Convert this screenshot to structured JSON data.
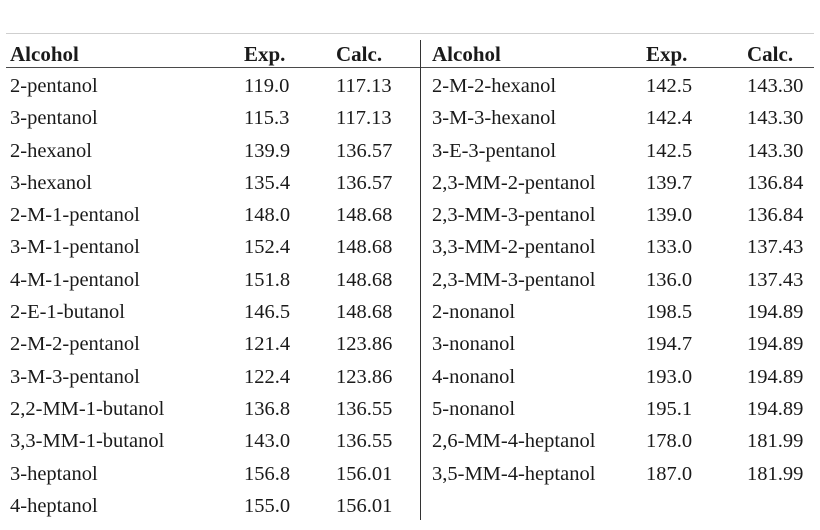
{
  "table": {
    "headers": {
      "alcohol": "Alcohol",
      "exp": "Exp.",
      "calc": "Calc."
    },
    "left_rows": [
      {
        "alcohol": "2-pentanol",
        "exp": "119.0",
        "calc": "117.13"
      },
      {
        "alcohol": "3-pentanol",
        "exp": "115.3",
        "calc": "117.13"
      },
      {
        "alcohol": "2-hexanol",
        "exp": "139.9",
        "calc": "136.57"
      },
      {
        "alcohol": "3-hexanol",
        "exp": "135.4",
        "calc": "136.57"
      },
      {
        "alcohol": "2-M-1-pentanol",
        "exp": "148.0",
        "calc": "148.68"
      },
      {
        "alcohol": "3-M-1-pentanol",
        "exp": "152.4",
        "calc": "148.68"
      },
      {
        "alcohol": "4-M-1-pentanol",
        "exp": "151.8",
        "calc": "148.68"
      },
      {
        "alcohol": "2-E-1-butanol",
        "exp": "146.5",
        "calc": "148.68"
      },
      {
        "alcohol": "2-M-2-pentanol",
        "exp": "121.4",
        "calc": "123.86"
      },
      {
        "alcohol": "3-M-3-pentanol",
        "exp": "122.4",
        "calc": "123.86"
      },
      {
        "alcohol": "2,2-MM-1-butanol",
        "exp": "136.8",
        "calc": "136.55"
      },
      {
        "alcohol": "3,3-MM-1-butanol",
        "exp": "143.0",
        "calc": "136.55"
      },
      {
        "alcohol": "3-heptanol",
        "exp": "156.8",
        "calc": "156.01"
      },
      {
        "alcohol": "4-heptanol",
        "exp": "155.0",
        "calc": "156.01"
      }
    ],
    "right_rows": [
      {
        "alcohol": "2-M-2-hexanol",
        "exp": "142.5",
        "calc": "143.30"
      },
      {
        "alcohol": "3-M-3-hexanol",
        "exp": "142.4",
        "calc": "143.30"
      },
      {
        "alcohol": "3-E-3-pentanol",
        "exp": "142.5",
        "calc": "143.30"
      },
      {
        "alcohol": "2,3-MM-2-pentanol",
        "exp": "139.7",
        "calc": "136.84"
      },
      {
        "alcohol": "2,3-MM-3-pentanol",
        "exp": "139.0",
        "calc": "136.84"
      },
      {
        "alcohol": "3,3-MM-2-pentanol",
        "exp": "133.0",
        "calc": "137.43"
      },
      {
        "alcohol": "2,3-MM-3-pentanol",
        "exp": "136.0",
        "calc": "137.43"
      },
      {
        "alcohol": "2-nonanol",
        "exp": "198.5",
        "calc": "194.89"
      },
      {
        "alcohol": "3-nonanol",
        "exp": "194.7",
        "calc": "194.89"
      },
      {
        "alcohol": "4-nonanol",
        "exp": "193.0",
        "calc": "194.89"
      },
      {
        "alcohol": "5-nonanol",
        "exp": "195.1",
        "calc": "194.89"
      },
      {
        "alcohol": "2,6-MM-4-heptanol",
        "exp": "178.0",
        "calc": "181.99"
      },
      {
        "alcohol": "3,5-MM-4-heptanol",
        "exp": "187.0",
        "calc": "181.99"
      }
    ]
  }
}
